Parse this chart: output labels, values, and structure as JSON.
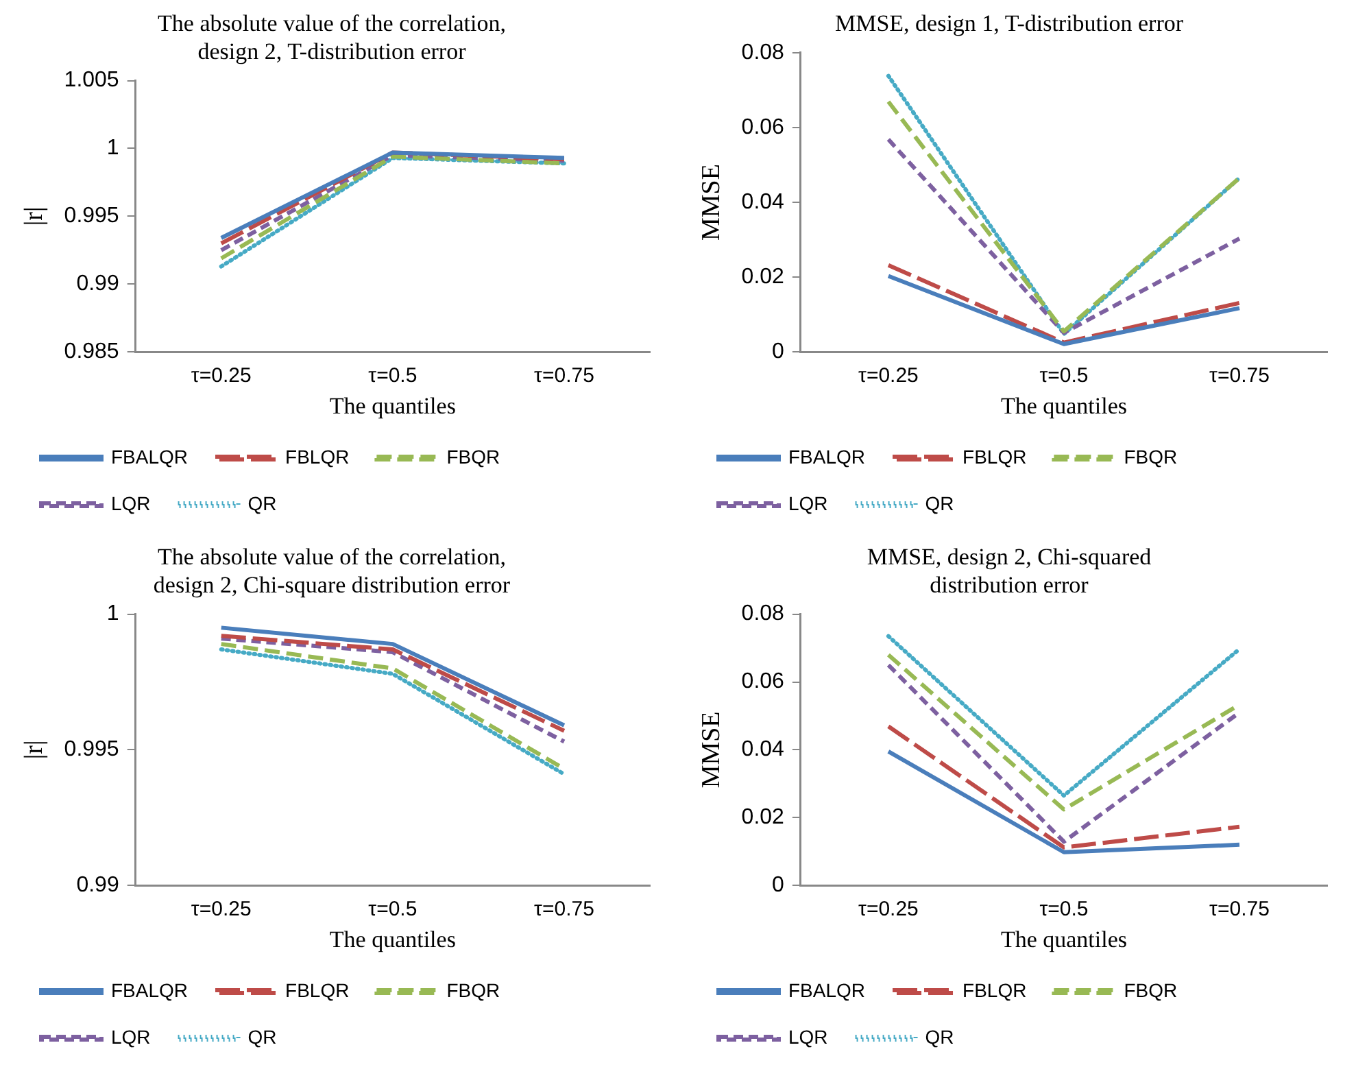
{
  "chart_data": [
    {
      "type": "line",
      "title": "The absolute value of the correlation,\ndesign 2, T-distribution error",
      "xlabel": "The quantiles",
      "ylabel": "|r|",
      "categories": [
        "τ=0.25",
        "τ=0.5",
        "τ=0.75"
      ],
      "ylim": [
        0.985,
        1.005
      ],
      "yticks": [
        0.985,
        0.99,
        0.995,
        {
          "value": 1,
          "label": "1"
        },
        1.005
      ],
      "grid": false,
      "legend": "bottom",
      "marker": "none",
      "series": [
        {
          "name": "FBALQR",
          "color": "#4a7ebb",
          "line_style": "solid",
          "values": [
            0.9934,
            0.9997,
            0.9993
          ]
        },
        {
          "name": "FBLQR",
          "color": "#be4b48",
          "line_style": "dashed",
          "values": [
            0.993,
            0.9997,
            0.9992
          ]
        },
        {
          "name": "FBQR",
          "color": "#98b954",
          "line_style": "dashed",
          "values": [
            0.9919,
            0.9994,
            0.9989
          ]
        },
        {
          "name": "LQR",
          "color": "#7d60a0",
          "line_style": "dashed",
          "values": [
            0.9925,
            0.9995,
            0.9991
          ]
        },
        {
          "name": "QR",
          "color": "#46aac5",
          "line_style": "dotted",
          "values": [
            0.9913,
            0.9993,
            0.9989
          ]
        }
      ]
    },
    {
      "type": "line",
      "title": "MMSE, design 1, T-distribution error",
      "xlabel": "The quantiles",
      "ylabel": "MMSE",
      "categories": [
        "τ=0.25",
        "τ=0.5",
        "τ=0.75"
      ],
      "ylim": [
        0,
        0.08
      ],
      "yticks": [
        0,
        0.02,
        0.04,
        0.06,
        0.08
      ],
      "grid": false,
      "legend": "bottom",
      "marker": "none",
      "series": [
        {
          "name": "FBALQR",
          "color": "#4a7ebb",
          "line_style": "solid",
          "values": [
            0.0203,
            0.0021,
            0.0117
          ]
        },
        {
          "name": "FBLQR",
          "color": "#be4b48",
          "line_style": "dashed",
          "values": [
            0.0232,
            0.0025,
            0.0131
          ]
        },
        {
          "name": "FBQR",
          "color": "#98b954",
          "line_style": "dashed",
          "values": [
            0.0669,
            0.0055,
            0.0465
          ]
        },
        {
          "name": "LQR",
          "color": "#7d60a0",
          "line_style": "dashed",
          "values": [
            0.0568,
            0.0051,
            0.0303
          ]
        },
        {
          "name": "QR",
          "color": "#46aac5",
          "line_style": "dotted",
          "values": [
            0.0738,
            0.0048,
            0.0465
          ]
        }
      ]
    },
    {
      "type": "line",
      "title": "The absolute value of the correlation,\ndesign 2, Chi-square distribution error",
      "xlabel": "The quantiles",
      "ylabel": "|r|",
      "categories": [
        "τ=0.25",
        "τ=0.5",
        "τ=0.75"
      ],
      "ylim": [
        0.99,
        1
      ],
      "yticks": [
        0.99,
        0.995,
        {
          "value": 1,
          "label": "1"
        }
      ],
      "grid": false,
      "legend": "bottom",
      "marker": "none",
      "series": [
        {
          "name": "FBALQR",
          "color": "#4a7ebb",
          "line_style": "solid",
          "values": [
            0.9995,
            0.9989,
            0.9959
          ]
        },
        {
          "name": "FBLQR",
          "color": "#be4b48",
          "line_style": "dashed",
          "values": [
            0.9992,
            0.9987,
            0.9957
          ]
        },
        {
          "name": "FBQR",
          "color": "#98b954",
          "line_style": "dashed",
          "values": [
            0.9989,
            0.998,
            0.9943
          ]
        },
        {
          "name": "LQR",
          "color": "#7d60a0",
          "line_style": "dashed",
          "values": [
            0.9991,
            0.9986,
            0.9953
          ]
        },
        {
          "name": "QR",
          "color": "#46aac5",
          "line_style": "dotted",
          "values": [
            0.9987,
            0.9978,
            0.9941
          ]
        }
      ]
    },
    {
      "type": "line",
      "title": "MMSE, design 2, Chi-squared\ndistribution error",
      "xlabel": "The quantiles",
      "ylabel": "MMSE",
      "categories": [
        "τ=0.25",
        "τ=0.5",
        "τ=0.75"
      ],
      "ylim": [
        0,
        0.08
      ],
      "yticks": [
        0,
        0.02,
        0.04,
        0.06,
        0.08
      ],
      "grid": false,
      "legend": "bottom",
      "marker": "none",
      "series": [
        {
          "name": "FBALQR",
          "color": "#4a7ebb",
          "line_style": "solid",
          "values": [
            0.0395,
            0.0098,
            0.012
          ]
        },
        {
          "name": "FBLQR",
          "color": "#be4b48",
          "line_style": "dashed",
          "values": [
            0.0469,
            0.0112,
            0.0173
          ]
        },
        {
          "name": "FBQR",
          "color": "#98b954",
          "line_style": "dashed",
          "values": [
            0.068,
            0.0224,
            0.0533
          ]
        },
        {
          "name": "LQR",
          "color": "#7d60a0",
          "line_style": "dashed",
          "values": [
            0.065,
            0.0129,
            0.051
          ]
        },
        {
          "name": "QR",
          "color": "#46aac5",
          "line_style": "dotted",
          "values": [
            0.0735,
            0.0265,
            0.0697
          ]
        }
      ]
    }
  ]
}
